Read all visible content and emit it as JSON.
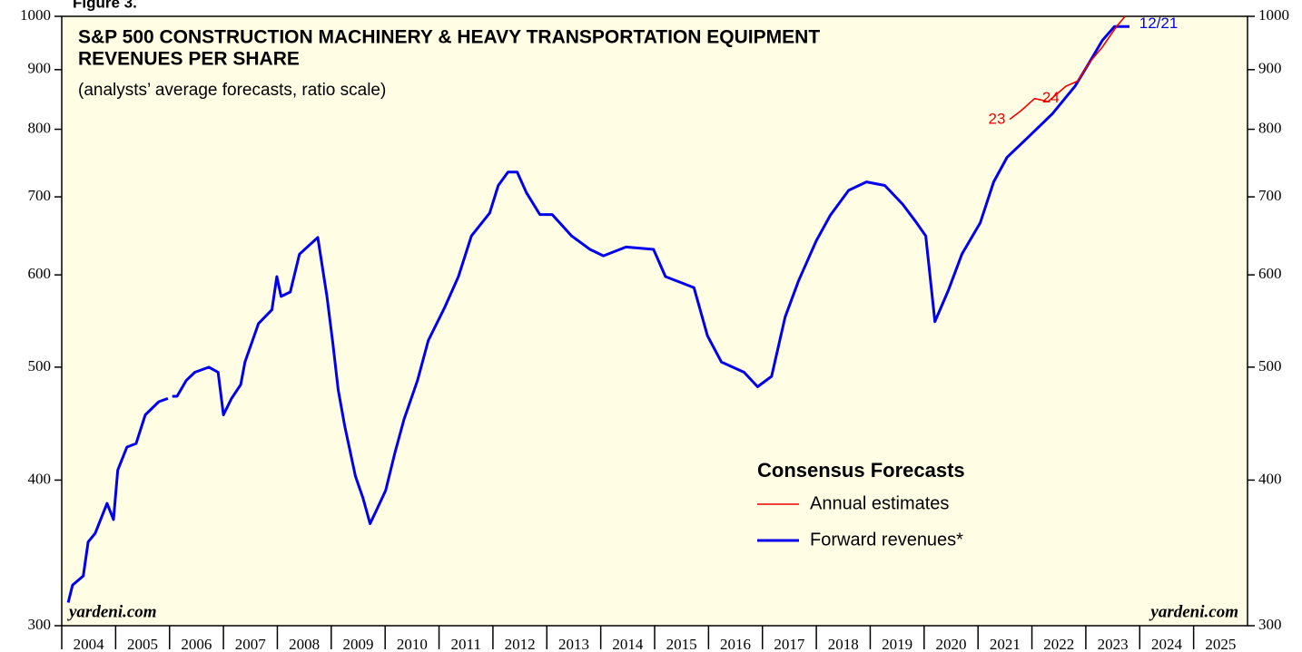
{
  "chart_data": {
    "type": "line",
    "figure_label": "Figure 3.",
    "title": [
      "S&P 500 CONSTRUCTION MACHINERY & HEAVY TRANSPORTATION EQUIPMENT",
      "REVENUES PER SHARE"
    ],
    "subtitle": "(analysts’ average forecasts, ratio scale)",
    "source": "yardeni.com",
    "log_scale": true,
    "xlim": [
      2004,
      2026
    ],
    "xticks": [
      2004,
      2005,
      2006,
      2007,
      2008,
      2009,
      2010,
      2011,
      2012,
      2013,
      2014,
      2015,
      2016,
      2017,
      2018,
      2019,
      2020,
      2021,
      2022,
      2023,
      2024,
      2025
    ],
    "ylim": [
      300,
      1000
    ],
    "yticks": [
      300,
      400,
      500,
      600,
      700,
      800,
      900,
      1000
    ],
    "legend": {
      "title": "Consensus Forecasts",
      "location": "lower right"
    },
    "series": [
      {
        "name": "Forward revenues*",
        "color": "#0000ee",
        "x": [
          2004.12,
          2004.2,
          2004.4,
          2004.49,
          2004.62,
          2004.84,
          2004.96,
          2005.04,
          2005.21,
          2005.38,
          2005.55,
          2005.8,
          2005.97,
          null,
          2006.05,
          2006.14,
          2006.31,
          2006.47,
          2006.73,
          2006.9,
          2007.0,
          2007.15,
          2007.32,
          2007.4,
          2007.65,
          2007.9,
          2007.99,
          2008.07,
          2008.24,
          2008.41,
          2008.75,
          2008.92,
          2009.03,
          2009.13,
          2009.25,
          2009.45,
          2009.59,
          2009.72,
          2009.84,
          2010.01,
          2010.18,
          2010.35,
          2010.6,
          2010.8,
          2011.1,
          2011.36,
          2011.6,
          2011.94,
          2012.1,
          2012.28,
          2012.45,
          2012.62,
          2012.87,
          2013.1,
          2013.46,
          2013.8,
          2014.05,
          2014.47,
          2014.98,
          2015.2,
          2015.73,
          2015.98,
          2016.24,
          2016.66,
          2016.91,
          2017.17,
          2017.42,
          2017.67,
          2018.0,
          2018.26,
          2018.6,
          2018.93,
          2019.27,
          2019.6,
          2019.86,
          2020.03,
          2020.2,
          2020.45,
          2020.7,
          2021.04,
          2021.29,
          2021.54,
          2021.96,
          2022.38,
          2022.8,
          2023.06,
          2023.31,
          2023.53,
          2023.81
        ],
        "values": [
          314,
          325,
          331,
          354,
          360,
          382,
          370,
          408,
          427,
          430,
          455,
          467,
          470,
          null,
          472,
          472,
          487,
          495,
          500,
          495,
          455,
          470,
          483,
          505,
          545,
          560,
          598,
          575,
          580,
          625,
          646,
          575,
          524,
          478,
          445,
          403,
          386,
          367,
          377,
          392,
          422,
          451,
          487,
          527,
          562,
          598,
          648,
          678,
          716,
          735,
          735,
          706,
          676,
          676,
          648,
          631,
          623,
          634,
          631,
          598,
          585,
          532,
          505,
          495,
          481,
          491,
          552,
          593,
          642,
          675,
          709,
          721,
          716,
          690,
          665,
          648,
          547,
          582,
          625,
          665,
          721,
          757,
          790,
          825,
          871,
          912,
          954,
          980,
          980
        ]
      },
      {
        "name": "Annual estimates",
        "color": "#ee0000",
        "x": [
          2021.59,
          2021.8,
          2022.05,
          2022.3,
          2022.63,
          2022.85,
          2023.06,
          2023.3,
          2023.57,
          2023.73
        ],
        "values": [
          816,
          830,
          850,
          845,
          871,
          880,
          912,
          940,
          980,
          1000
        ]
      }
    ],
    "annotations": [
      {
        "text": "23",
        "x": 2021.35,
        "y": 815,
        "color": "#ee0000"
      },
      {
        "text": "24",
        "x": 2022.35,
        "y": 850,
        "color": "#ee0000"
      },
      {
        "text": "12/21",
        "x": 2024.35,
        "y": 985,
        "color": "#0000ee"
      }
    ]
  }
}
